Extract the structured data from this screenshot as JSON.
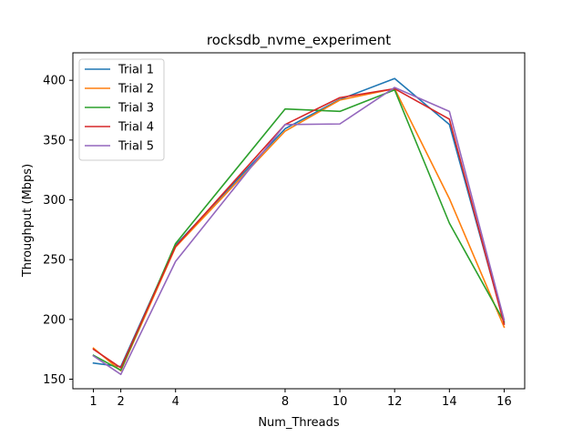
{
  "chart_data": {
    "type": "line",
    "title": "rocksdb_nvme_experiment",
    "xlabel": "Num_Threads",
    "ylabel": "Throughput (Mbps)",
    "x": [
      1,
      2,
      4,
      8,
      10,
      12,
      14,
      16
    ],
    "xticks": [
      1,
      2,
      4,
      8,
      10,
      12,
      14,
      16
    ],
    "yticks": [
      150,
      200,
      250,
      300,
      350,
      400
    ],
    "xlim": [
      0.25,
      16.75
    ],
    "ylim": [
      142,
      423
    ],
    "grid": false,
    "legend_position": "top-left",
    "series": [
      {
        "name": "Trial 1",
        "color": "#1f77b4",
        "values": [
          163.5,
          160.5,
          262.0,
          359.5,
          384.0,
          401.5,
          363.0,
          197.0
        ]
      },
      {
        "name": "Trial 2",
        "color": "#ff7f0e",
        "values": [
          176.0,
          157.0,
          260.5,
          357.5,
          383.5,
          393.0,
          301.0,
          193.5
        ]
      },
      {
        "name": "Trial 3",
        "color": "#2ca02c",
        "values": [
          170.0,
          157.5,
          263.5,
          376.0,
          374.0,
          392.0,
          280.5,
          198.0
        ]
      },
      {
        "name": "Trial 4",
        "color": "#d62728",
        "values": [
          175.0,
          159.5,
          261.0,
          363.0,
          385.5,
          393.0,
          367.5,
          196.0
        ]
      },
      {
        "name": "Trial 5",
        "color": "#9467bd",
        "values": [
          169.5,
          154.0,
          248.5,
          363.0,
          363.5,
          394.0,
          374.0,
          199.5
        ]
      }
    ]
  }
}
